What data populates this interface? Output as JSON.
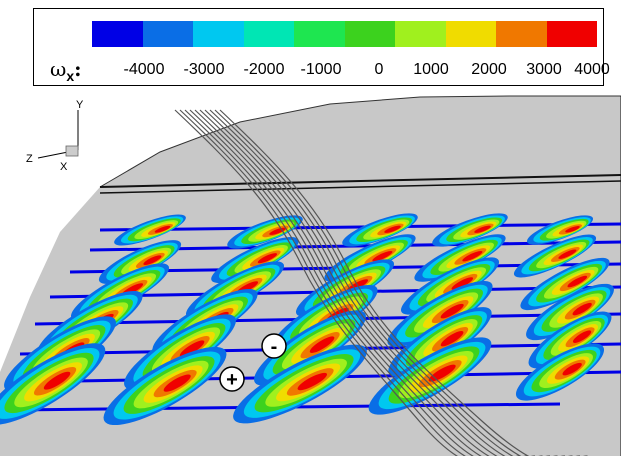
{
  "legend": {
    "variable_symbol": "ω",
    "variable_subscript": "x",
    "colon": ":",
    "tick_labels": [
      "-4000",
      "-3000",
      "-2000",
      "-1000",
      "0",
      "1000",
      "2000",
      "3000",
      "4000"
    ],
    "colors": [
      "#0000e6",
      "#0a6ee6",
      "#00c8f0",
      "#00e6b4",
      "#1ee650",
      "#3cd21e",
      "#a0f01e",
      "#f0dc00",
      "#f07800",
      "#f00000"
    ]
  },
  "axes": {
    "y": "Y",
    "z": "Z",
    "x": "X"
  },
  "markers": {
    "minus": "-",
    "plus": "+"
  }
}
